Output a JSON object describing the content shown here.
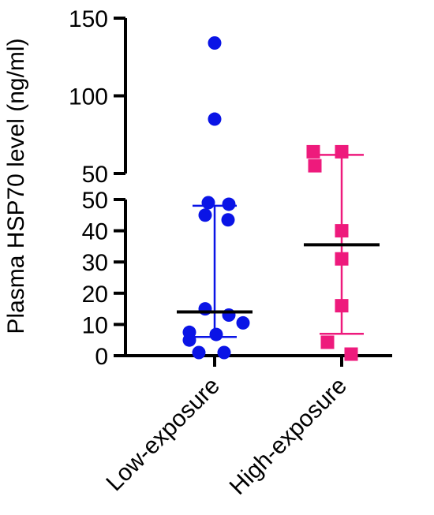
{
  "chart_data": {
    "type": "scatter",
    "subtype": "dot-plot-with-median-and-range",
    "ylabel": "Plasma HSP70 level (ng/ml)",
    "y_axis_break": {
      "lower_segment": [
        0,
        50
      ],
      "upper_segment": [
        50,
        150
      ]
    },
    "upper_ticks": [
      "50",
      "100",
      "150"
    ],
    "lower_ticks": [
      "0",
      "10",
      "20",
      "30",
      "40",
      "50"
    ],
    "categories": [
      "Low-exposure",
      "High-exposure"
    ],
    "series": [
      {
        "category": "Low-exposure",
        "marker": "circle",
        "color": "#0a14e6",
        "values": [
          134,
          85,
          49,
          48.5,
          45,
          43.5,
          15,
          13,
          10.5,
          7.5,
          6.8,
          5,
          1,
          1
        ],
        "median": 14,
        "range_whisker": [
          6,
          48
        ]
      },
      {
        "category": "High-exposure",
        "marker": "square",
        "color": "#ee1a7c",
        "values": [
          64,
          64,
          55,
          40,
          31,
          16,
          4.3,
          0.5
        ],
        "median": 35.5,
        "range_whisker": [
          7,
          62
        ]
      }
    ],
    "grid": false,
    "legend": "none"
  }
}
